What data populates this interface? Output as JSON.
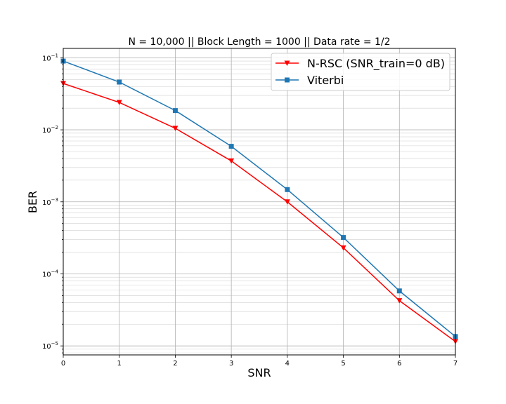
{
  "chart_data": {
    "type": "line",
    "title": "N = 10,000 || Block Length = 1000 || Data rate = 1/2",
    "xlabel": "SNR",
    "ylabel": "BER",
    "xlim": [
      0,
      7
    ],
    "ylim": [
      7.5e-06,
      0.135
    ],
    "yscale": "log",
    "grid": "both (major and minor)",
    "legend_position": "top-right",
    "x_ticks": [
      "0",
      "1",
      "2",
      "3",
      "4",
      "5",
      "6",
      "7"
    ],
    "y_ticks": [
      {
        "base": "10",
        "exp": "−1"
      },
      {
        "base": "10",
        "exp": "−2"
      },
      {
        "base": "10",
        "exp": "−3"
      },
      {
        "base": "10",
        "exp": "−4"
      },
      {
        "base": "10",
        "exp": "−5"
      }
    ],
    "x": [
      0,
      1,
      2,
      3,
      4,
      5,
      6,
      7
    ],
    "series": [
      {
        "name": "N-RSC (SNR_train=0 dB)",
        "color": "#ff0000",
        "marker": "triangle-down",
        "values": [
          0.044,
          0.024,
          0.0105,
          0.0037,
          0.001,
          0.00023,
          4.25e-05,
          1.15e-05
        ]
      },
      {
        "name": "Viterbi",
        "color": "#1f77b4",
        "marker": "square",
        "values": [
          0.09,
          0.046,
          0.0185,
          0.0059,
          0.00148,
          0.00032,
          5.8e-05,
          1.35e-05
        ]
      }
    ]
  }
}
